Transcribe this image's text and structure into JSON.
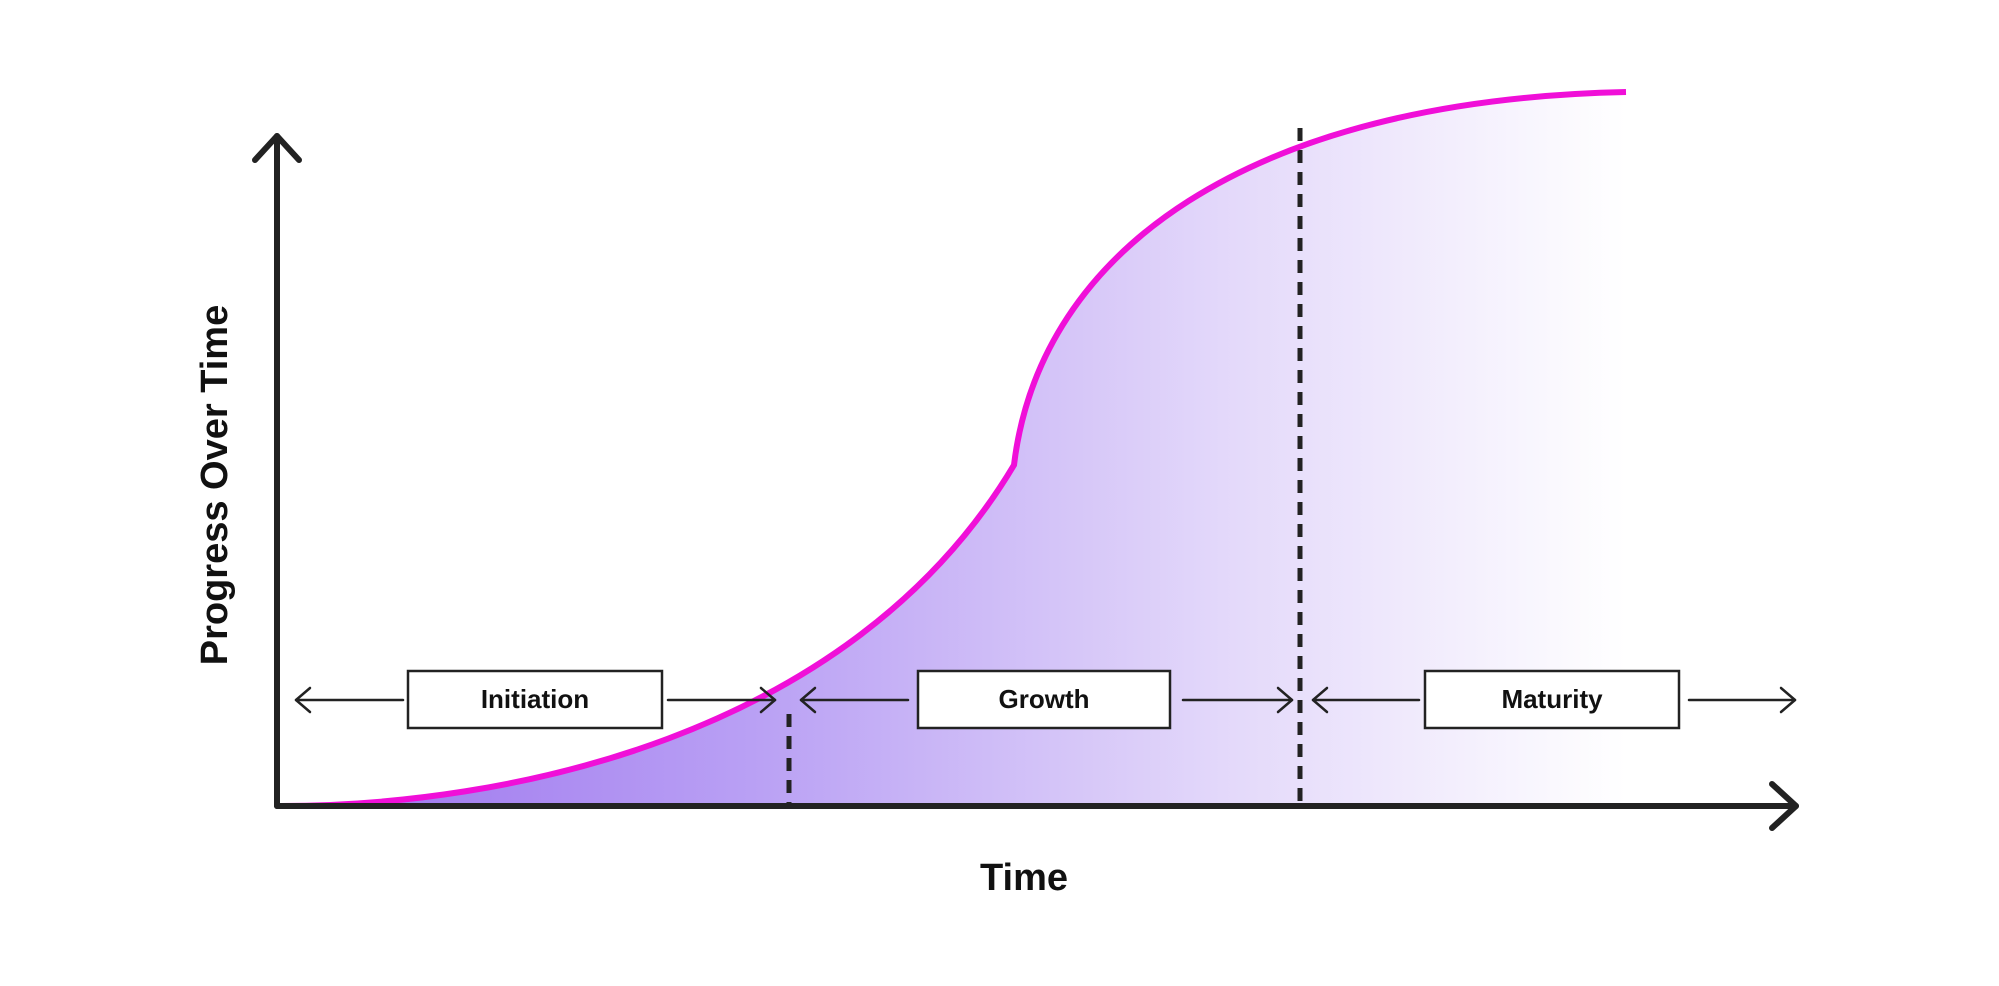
{
  "axes": {
    "y_label": "Progress Over Time",
    "x_label": "Time"
  },
  "phases": [
    {
      "label": "Initiation"
    },
    {
      "label": "Growth"
    },
    {
      "label": "Maturity"
    }
  ]
}
